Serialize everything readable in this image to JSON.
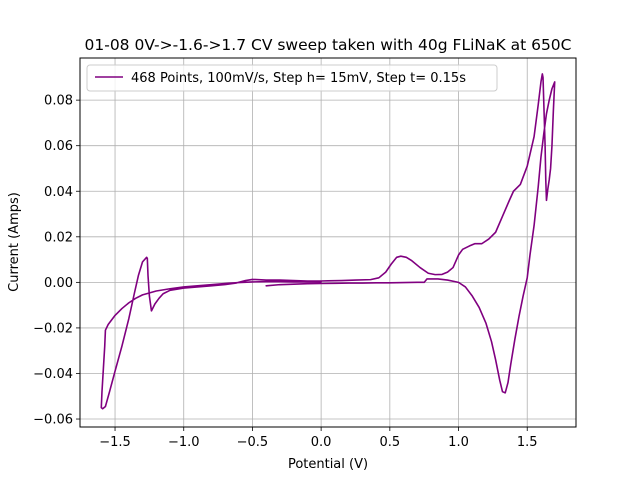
{
  "chart_data": {
    "type": "line",
    "title": "01-08 0V->-1.6->1.7 CV sweep taken with 40g FLiNaK at 650C",
    "xlabel": "Potential (V)",
    "ylabel": "Current (Amps)",
    "xlim": [
      -1.755,
      1.855
    ],
    "ylim": [
      -0.0635,
      0.0985
    ],
    "xticks": [
      -1.5,
      -1.0,
      -0.5,
      0.0,
      0.5,
      1.0,
      1.5
    ],
    "xtick_labels": [
      "−1.5",
      "−1.0",
      "−0.5",
      "0.0",
      "0.5",
      "1.0",
      "1.5"
    ],
    "yticks": [
      -0.06,
      -0.04,
      -0.02,
      0.0,
      0.02,
      0.04,
      0.06,
      0.08
    ],
    "ytick_labels": [
      "−0.06",
      "−0.04",
      "−0.02",
      "0.00",
      "0.02",
      "0.04",
      "0.06",
      "0.08"
    ],
    "grid": true,
    "legend_position": "upper-left",
    "series": [
      {
        "name": "468 Points, 100mV/s, Step h= 15mV, Step t= 0.15s",
        "color": "#800080",
        "points": [
          [
            -0.4,
            -0.0015
          ],
          [
            -0.3,
            -0.001
          ],
          [
            -0.2,
            -0.0008
          ],
          [
            -0.1,
            -0.0006
          ],
          [
            0.0,
            -0.0005
          ],
          [
            0.1,
            -0.0004
          ],
          [
            0.2,
            -0.0003
          ],
          [
            0.3,
            -0.0003
          ],
          [
            0.4,
            -0.0002
          ],
          [
            0.5,
            -0.0002
          ],
          [
            0.6,
            -0.0001
          ],
          [
            0.7,
            0.0
          ],
          [
            0.75,
            0.0
          ],
          [
            0.77,
            0.0015
          ],
          [
            0.85,
            0.0015
          ],
          [
            0.92,
            0.001
          ],
          [
            1.0,
            0.0
          ],
          [
            1.05,
            -0.002
          ],
          [
            1.1,
            -0.006
          ],
          [
            1.15,
            -0.011
          ],
          [
            1.2,
            -0.018
          ],
          [
            1.24,
            -0.026
          ],
          [
            1.27,
            -0.034
          ],
          [
            1.3,
            -0.043
          ],
          [
            1.32,
            -0.048
          ],
          [
            1.34,
            -0.0485
          ],
          [
            1.36,
            -0.044
          ],
          [
            1.38,
            -0.036
          ],
          [
            1.41,
            -0.025
          ],
          [
            1.44,
            -0.015
          ],
          [
            1.47,
            -0.006
          ],
          [
            1.5,
            0.002
          ],
          [
            1.52,
            0.012
          ],
          [
            1.55,
            0.025
          ],
          [
            1.58,
            0.042
          ],
          [
            1.6,
            0.055
          ],
          [
            1.62,
            0.065
          ],
          [
            1.64,
            0.074
          ],
          [
            1.66,
            0.08
          ],
          [
            1.68,
            0.085
          ],
          [
            1.7,
            0.088
          ],
          [
            1.69,
            0.075
          ],
          [
            1.68,
            0.06
          ],
          [
            1.67,
            0.05
          ],
          [
            1.66,
            0.045
          ],
          [
            1.65,
            0.041
          ],
          [
            1.64,
            0.036
          ],
          [
            1.635,
            0.045
          ],
          [
            1.63,
            0.06
          ],
          [
            1.62,
            0.08
          ],
          [
            1.615,
            0.09
          ],
          [
            1.61,
            0.0915
          ],
          [
            1.6,
            0.088
          ],
          [
            1.58,
            0.078
          ],
          [
            1.55,
            0.064
          ],
          [
            1.5,
            0.051
          ],
          [
            1.45,
            0.043
          ],
          [
            1.4,
            0.04
          ],
          [
            1.37,
            0.036
          ],
          [
            1.32,
            0.029
          ],
          [
            1.27,
            0.022
          ],
          [
            1.22,
            0.019
          ],
          [
            1.17,
            0.017
          ],
          [
            1.12,
            0.017
          ],
          [
            1.08,
            0.016
          ],
          [
            1.03,
            0.0145
          ],
          [
            1.0,
            0.012
          ],
          [
            0.96,
            0.0065
          ],
          [
            0.92,
            0.0045
          ],
          [
            0.88,
            0.0035
          ],
          [
            0.83,
            0.0034
          ],
          [
            0.78,
            0.004
          ],
          [
            0.72,
            0.0065
          ],
          [
            0.66,
            0.0095
          ],
          [
            0.62,
            0.011
          ],
          [
            0.58,
            0.0115
          ],
          [
            0.55,
            0.011
          ],
          [
            0.51,
            0.008
          ],
          [
            0.47,
            0.0045
          ],
          [
            0.42,
            0.002
          ],
          [
            0.36,
            0.0012
          ],
          [
            0.25,
            0.001
          ],
          [
            0.15,
            0.0008
          ],
          [
            0.05,
            0.0007
          ],
          [
            0.0,
            0.0006
          ],
          [
            -0.1,
            0.0006
          ],
          [
            -0.2,
            0.0008
          ],
          [
            -0.3,
            0.001
          ],
          [
            -0.4,
            0.001
          ],
          [
            -0.5,
            0.0013
          ],
          [
            -0.55,
            0.0008
          ],
          [
            -0.62,
            -0.0003
          ],
          [
            -0.7,
            -0.001
          ],
          [
            -0.8,
            -0.0015
          ],
          [
            -0.9,
            -0.002
          ],
          [
            -1.0,
            -0.0025
          ],
          [
            -1.05,
            -0.003
          ],
          [
            -1.1,
            -0.0035
          ],
          [
            -1.15,
            -0.005
          ],
          [
            -1.18,
            -0.007
          ],
          [
            -1.21,
            -0.0095
          ],
          [
            -1.235,
            -0.0125
          ],
          [
            -1.25,
            -0.006
          ],
          [
            -1.26,
            0.003
          ],
          [
            -1.265,
            0.0105
          ],
          [
            -1.27,
            0.011
          ],
          [
            -1.3,
            0.009
          ],
          [
            -1.33,
            0.003
          ],
          [
            -1.36,
            -0.005
          ],
          [
            -1.4,
            -0.016
          ],
          [
            -1.45,
            -0.028
          ],
          [
            -1.5,
            -0.039
          ],
          [
            -1.54,
            -0.048
          ],
          [
            -1.57,
            -0.0545
          ],
          [
            -1.59,
            -0.0555
          ],
          [
            -1.6,
            -0.055
          ],
          [
            -1.595,
            -0.048
          ],
          [
            -1.585,
            -0.038
          ],
          [
            -1.575,
            -0.028
          ],
          [
            -1.57,
            -0.021
          ],
          [
            -1.55,
            -0.0185
          ],
          [
            -1.5,
            -0.0145
          ],
          [
            -1.45,
            -0.0115
          ],
          [
            -1.4,
            -0.009
          ],
          [
            -1.35,
            -0.007
          ],
          [
            -1.3,
            -0.0055
          ],
          [
            -1.2,
            -0.0038
          ],
          [
            -1.1,
            -0.0028
          ],
          [
            -1.0,
            -0.002
          ],
          [
            -0.9,
            -0.0015
          ],
          [
            -0.8,
            -0.001
          ],
          [
            -0.7,
            -0.0005
          ],
          [
            -0.6,
            -0.0001
          ],
          [
            -0.5,
            0.0002
          ],
          [
            -0.4,
            0.0003
          ],
          [
            -0.3,
            0.0003
          ],
          [
            -0.2,
            0.0002
          ],
          [
            -0.1,
            0.0002
          ],
          [
            0.0,
            0.0002
          ]
        ]
      }
    ]
  }
}
